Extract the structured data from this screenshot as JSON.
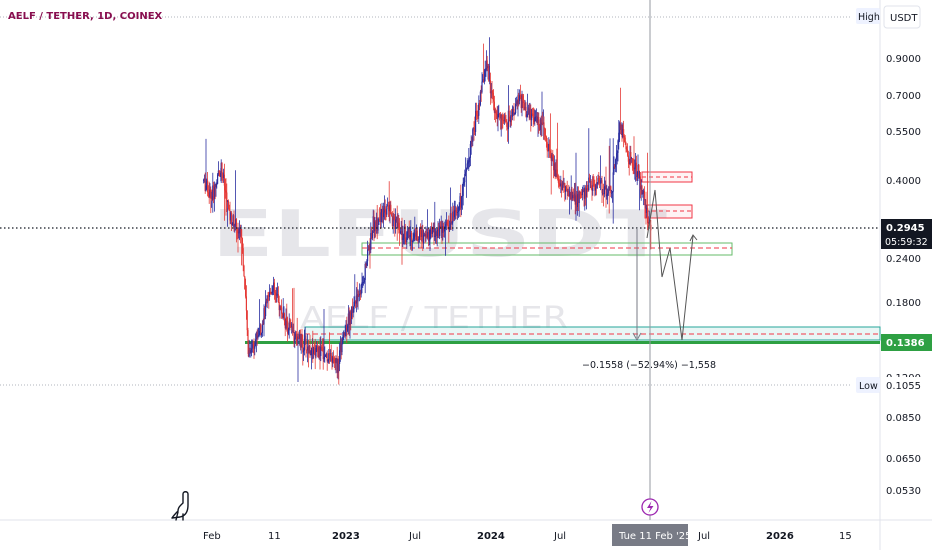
{
  "header": {
    "symbol_title": "AELF / TETHER, 1D, COINEX"
  },
  "watermark": {
    "ticker": "ELFUSDT",
    "pair": "AELF / TETHER"
  },
  "price_scale": {
    "currency_button": "USDT",
    "high_tag": "High",
    "low_tag": "Low",
    "low_value": "0.1055",
    "ticks": [
      "0.9000",
      "0.7000",
      "0.5500",
      "0.4000",
      "0.2400",
      "0.1800",
      "0.1200",
      "0.0850",
      "0.0650",
      "0.0530"
    ],
    "current_price": "0.2945",
    "countdown": "05:59:32",
    "support_value": "0.1386"
  },
  "time_scale": {
    "labels": [
      {
        "text": "Feb",
        "year": false
      },
      {
        "text": "11",
        "year": false
      },
      {
        "text": "2023",
        "year": true
      },
      {
        "text": "Jul",
        "year": false
      },
      {
        "text": "2024",
        "year": true
      },
      {
        "text": "Jul",
        "year": false
      },
      {
        "text": "Jul",
        "year": false
      },
      {
        "text": "2026",
        "year": true
      },
      {
        "text": "15",
        "year": false
      }
    ],
    "crosshair_label": "Tue 11 Feb '25"
  },
  "measure": {
    "label": "−0.1558 (−52.94%) −1,558"
  },
  "colors": {
    "up": "#089981",
    "down": "#f23645",
    "candle_up": "#2a2ea0",
    "candle_down": "#e53935",
    "support": "#2ea043",
    "accent": "#2962ff"
  },
  "chart_data": {
    "type": "candlestick",
    "title": "AELF / TETHER, 1D, COINEX",
    "y_scale": "log",
    "ylim": [
      0.045,
      1.2
    ],
    "x": [
      "2022-02",
      "2025-07"
    ],
    "current_price": 0.2945,
    "period_low": 0.1055,
    "support_level": 0.1386,
    "price_path": [
      [
        "2022-01-20",
        0.4
      ],
      [
        "2022-02-10",
        0.36
      ],
      [
        "2022-03-05",
        0.44
      ],
      [
        "2022-03-25",
        0.32
      ],
      [
        "2022-04-25",
        0.28
      ],
      [
        "2022-05-12",
        0.13
      ],
      [
        "2022-06-10",
        0.15
      ],
      [
        "2022-07-10",
        0.2
      ],
      [
        "2022-08-10",
        0.16
      ],
      [
        "2022-09-15",
        0.14
      ],
      [
        "2022-10-20",
        0.13
      ],
      [
        "2022-11-15",
        0.13
      ],
      [
        "2022-12-20",
        0.12
      ],
      [
        "2023-01-15",
        0.16
      ],
      [
        "2023-02-20",
        0.2
      ],
      [
        "2023-03-20",
        0.3
      ],
      [
        "2023-04-25",
        0.33
      ],
      [
        "2023-06-10",
        0.28
      ],
      [
        "2023-07-20",
        0.28
      ],
      [
        "2023-09-15",
        0.29
      ],
      [
        "2023-10-25",
        0.35
      ],
      [
        "2023-11-25",
        0.55
      ],
      [
        "2023-12-28",
        0.85
      ],
      [
        "2024-01-20",
        0.62
      ],
      [
        "2024-02-15",
        0.58
      ],
      [
        "2024-03-20",
        0.68
      ],
      [
        "2024-04-25",
        0.6
      ],
      [
        "2024-05-20",
        0.55
      ],
      [
        "2024-06-25",
        0.4
      ],
      [
        "2024-08-10",
        0.35
      ],
      [
        "2024-09-20",
        0.4
      ],
      [
        "2024-11-05",
        0.37
      ],
      [
        "2024-11-25",
        0.58
      ],
      [
        "2024-12-15",
        0.48
      ],
      [
        "2025-01-10",
        0.42
      ],
      [
        "2025-02-11",
        0.2945
      ]
    ],
    "zones": [
      {
        "kind": "support",
        "from": 0.238,
        "to": 0.255
      },
      {
        "kind": "support",
        "from": 0.133,
        "to": 0.15
      },
      {
        "kind": "resistance",
        "from": 0.4,
        "to": 0.42
      },
      {
        "kind": "resistance",
        "from": 0.335,
        "to": 0.355
      }
    ],
    "measurement": {
      "change": -0.1558,
      "change_pct": -52.94
    }
  }
}
